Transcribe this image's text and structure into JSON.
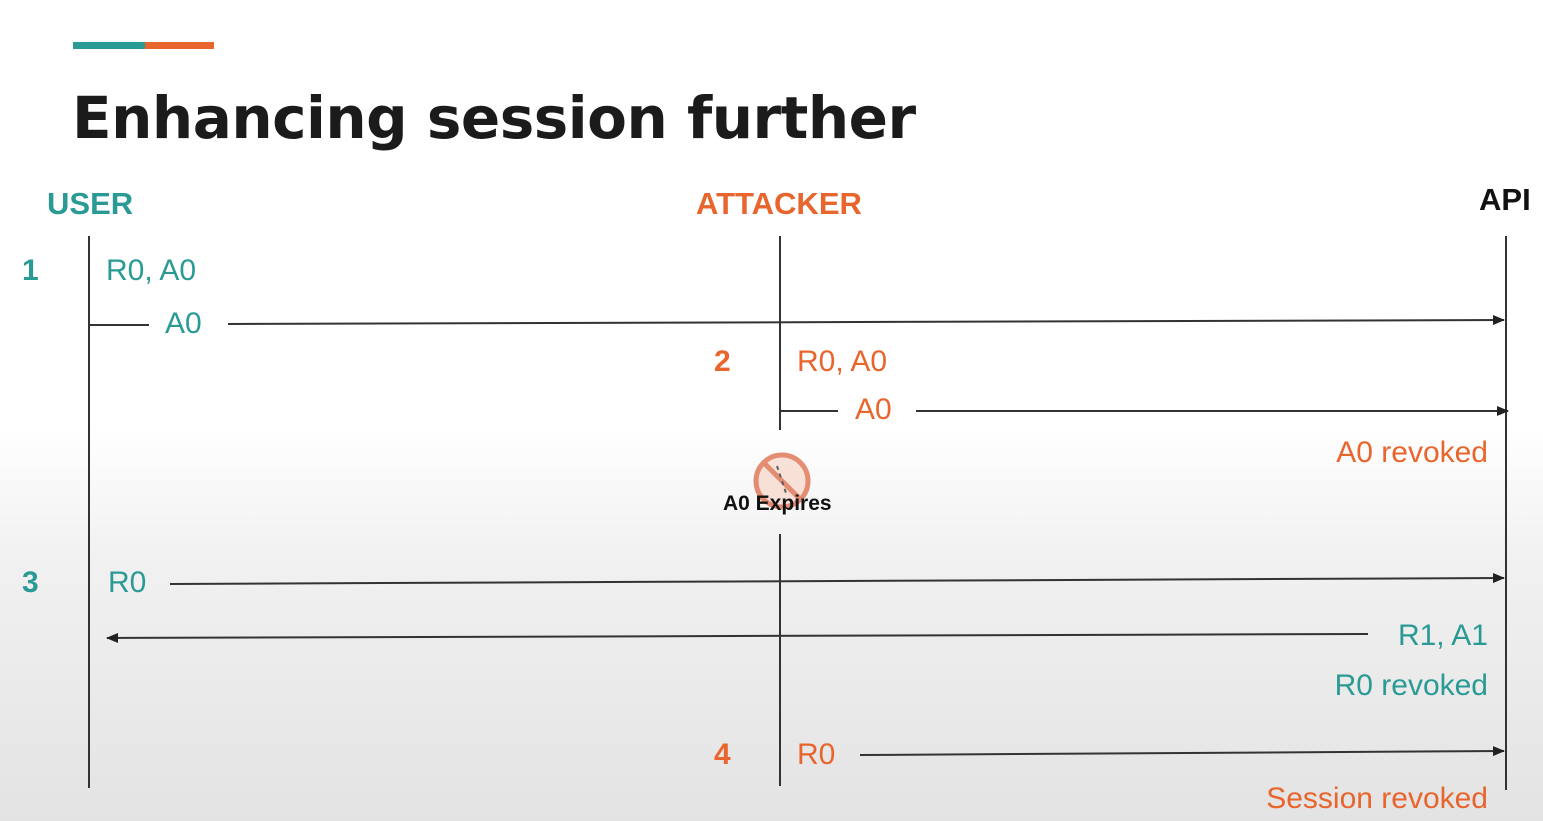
{
  "title": "Enhancing session further",
  "colors": {
    "teal": "#2a9a94",
    "orange": "#e8652e",
    "dark": "#111111"
  },
  "lanes": [
    {
      "id": "user",
      "label": "USER"
    },
    {
      "id": "attacker",
      "label": "ATTACKER"
    },
    {
      "id": "api",
      "label": "API"
    }
  ],
  "steps": [
    {
      "number": "1",
      "tokens": "R0, A0",
      "message": "A0"
    },
    {
      "number": "2",
      "tokens": "R0, A0",
      "message": "A0",
      "result": "A0 revoked"
    },
    {
      "number": "3",
      "message": "R0",
      "response": "R1, A1",
      "result": "R0 revoked"
    },
    {
      "number": "4",
      "message": "R0",
      "result": "Session revoked"
    }
  ],
  "expiry": {
    "label": "A0 Expires",
    "icon": "prohibited-icon"
  }
}
